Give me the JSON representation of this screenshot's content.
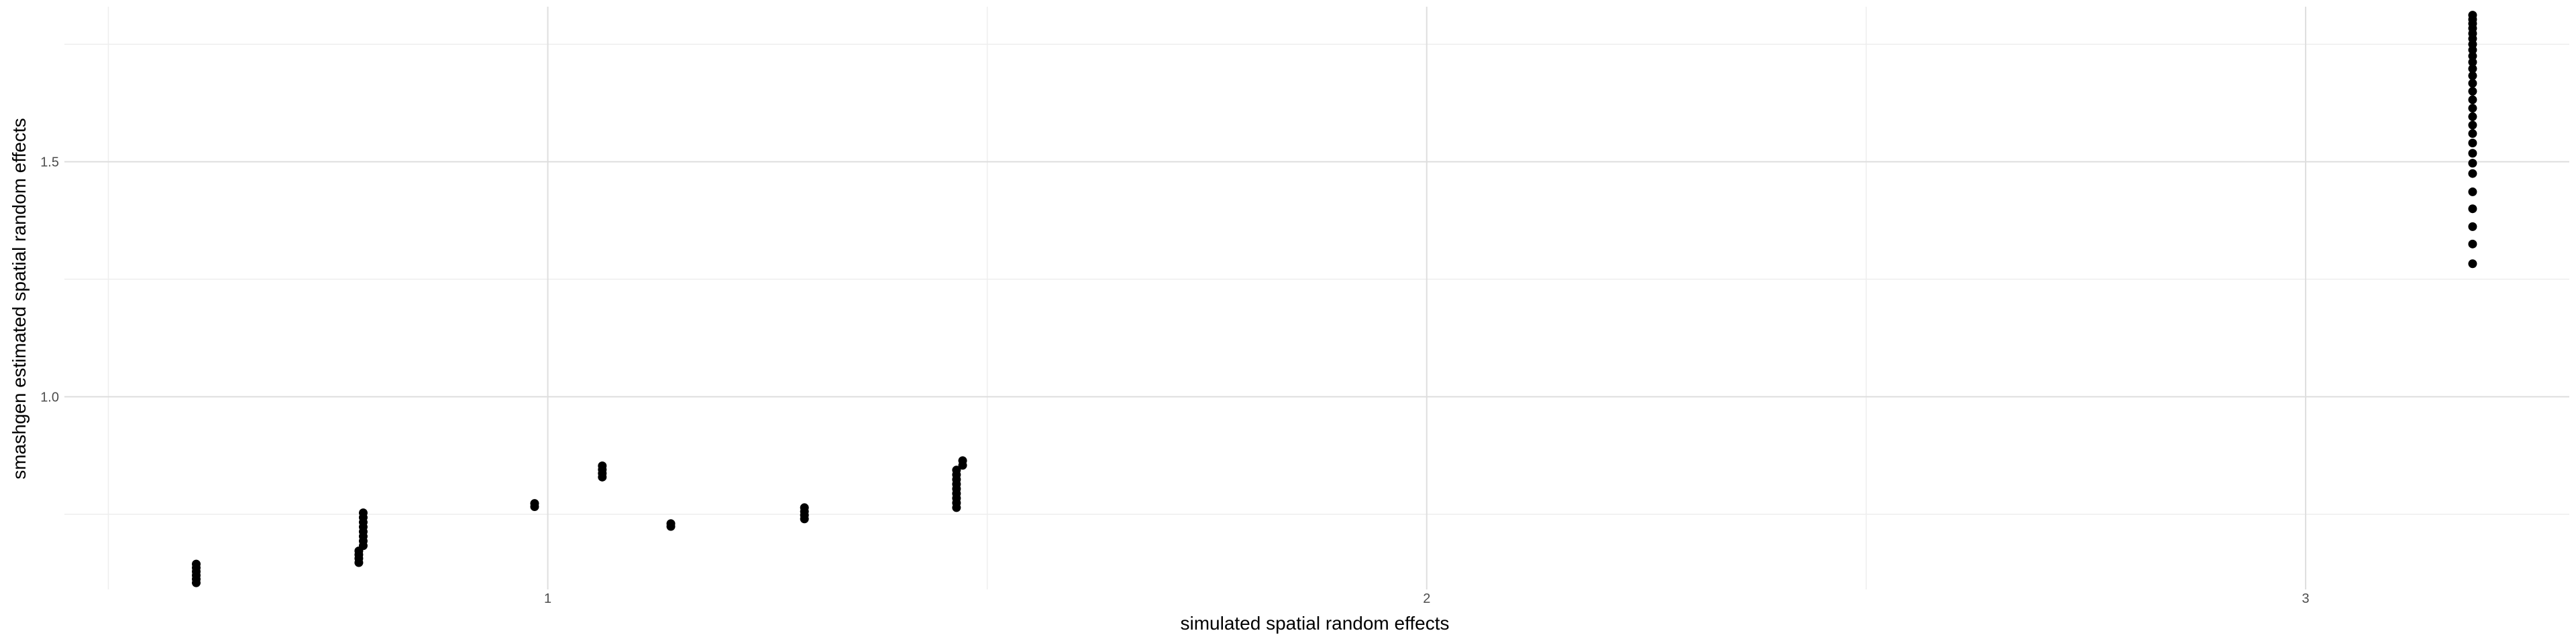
{
  "chart_data": {
    "type": "scatter",
    "title": "",
    "xlabel": "simulated spatial random effects",
    "ylabel": "smashgen estimated spatial random effects",
    "xlim": [
      0.45,
      3.3
    ],
    "ylim": [
      0.59,
      1.83
    ],
    "x_ticks": [
      1,
      2,
      3
    ],
    "x_tick_labels": [
      "1",
      "2",
      "3"
    ],
    "x_minor_ticks": [
      0.5,
      1.5,
      2.5
    ],
    "y_ticks": [
      1.0,
      1.5
    ],
    "y_tick_labels": [
      "1.0",
      "1.5"
    ],
    "y_minor_ticks": [
      0.75,
      1.25,
      1.75
    ],
    "grid": true,
    "legend": "none",
    "point_color": "#000000",
    "grid_major_color": "#dedede",
    "grid_minor_color": "#eeeeee",
    "points": [
      {
        "x": 0.6,
        "y": 0.604
      },
      {
        "x": 0.6,
        "y": 0.612
      },
      {
        "x": 0.6,
        "y": 0.62
      },
      {
        "x": 0.6,
        "y": 0.628
      },
      {
        "x": 0.6,
        "y": 0.636
      },
      {
        "x": 0.6,
        "y": 0.644
      },
      {
        "x": 0.785,
        "y": 0.647
      },
      {
        "x": 0.785,
        "y": 0.656
      },
      {
        "x": 0.785,
        "y": 0.664
      },
      {
        "x": 0.785,
        "y": 0.672
      },
      {
        "x": 0.79,
        "y": 0.683
      },
      {
        "x": 0.79,
        "y": 0.693
      },
      {
        "x": 0.79,
        "y": 0.703
      },
      {
        "x": 0.79,
        "y": 0.713
      },
      {
        "x": 0.79,
        "y": 0.723
      },
      {
        "x": 0.79,
        "y": 0.733
      },
      {
        "x": 0.79,
        "y": 0.743
      },
      {
        "x": 0.79,
        "y": 0.753
      },
      {
        "x": 0.985,
        "y": 0.766
      },
      {
        "x": 0.985,
        "y": 0.773
      },
      {
        "x": 1.062,
        "y": 0.829
      },
      {
        "x": 1.062,
        "y": 0.837
      },
      {
        "x": 1.062,
        "y": 0.845
      },
      {
        "x": 1.062,
        "y": 0.853
      },
      {
        "x": 1.14,
        "y": 0.724
      },
      {
        "x": 1.14,
        "y": 0.73
      },
      {
        "x": 1.292,
        "y": 0.74
      },
      {
        "x": 1.292,
        "y": 0.748
      },
      {
        "x": 1.292,
        "y": 0.756
      },
      {
        "x": 1.292,
        "y": 0.764
      },
      {
        "x": 1.465,
        "y": 0.764
      },
      {
        "x": 1.465,
        "y": 0.774
      },
      {
        "x": 1.465,
        "y": 0.784
      },
      {
        "x": 1.465,
        "y": 0.794
      },
      {
        "x": 1.465,
        "y": 0.804
      },
      {
        "x": 1.465,
        "y": 0.814
      },
      {
        "x": 1.465,
        "y": 0.824
      },
      {
        "x": 1.465,
        "y": 0.834
      },
      {
        "x": 1.465,
        "y": 0.844
      },
      {
        "x": 1.472,
        "y": 0.854
      },
      {
        "x": 1.472,
        "y": 0.864
      },
      {
        "x": 3.19,
        "y": 1.283
      },
      {
        "x": 3.19,
        "y": 1.325
      },
      {
        "x": 3.19,
        "y": 1.362
      },
      {
        "x": 3.19,
        "y": 1.4
      },
      {
        "x": 3.19,
        "y": 1.436
      },
      {
        "x": 3.19,
        "y": 1.475
      },
      {
        "x": 3.19,
        "y": 1.497
      },
      {
        "x": 3.19,
        "y": 1.518
      },
      {
        "x": 3.19,
        "y": 1.54
      },
      {
        "x": 3.19,
        "y": 1.56
      },
      {
        "x": 3.19,
        "y": 1.578
      },
      {
        "x": 3.19,
        "y": 1.596
      },
      {
        "x": 3.19,
        "y": 1.614
      },
      {
        "x": 3.19,
        "y": 1.632
      },
      {
        "x": 3.19,
        "y": 1.65
      },
      {
        "x": 3.19,
        "y": 1.667
      },
      {
        "x": 3.19,
        "y": 1.683
      },
      {
        "x": 3.19,
        "y": 1.698
      },
      {
        "x": 3.19,
        "y": 1.712
      },
      {
        "x": 3.19,
        "y": 1.725
      },
      {
        "x": 3.19,
        "y": 1.738
      },
      {
        "x": 3.19,
        "y": 1.75
      },
      {
        "x": 3.19,
        "y": 1.762
      },
      {
        "x": 3.19,
        "y": 1.773
      },
      {
        "x": 3.19,
        "y": 1.784
      },
      {
        "x": 3.19,
        "y": 1.794
      },
      {
        "x": 3.19,
        "y": 1.803
      },
      {
        "x": 3.19,
        "y": 1.812
      }
    ]
  }
}
